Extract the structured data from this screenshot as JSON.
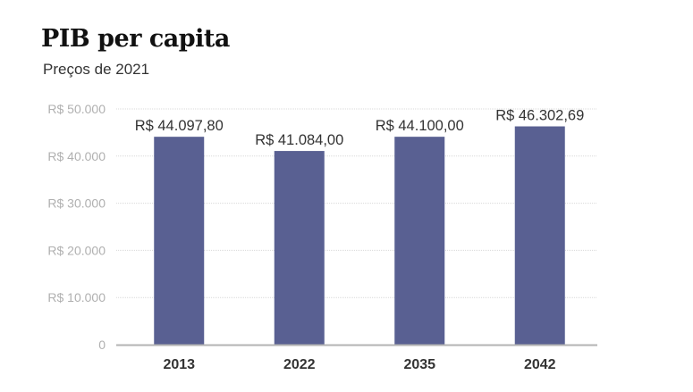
{
  "chart_data": {
    "type": "bar",
    "title": "PIB per capita",
    "subtitle": "Preços de 2021",
    "categories": [
      "2013",
      "2022",
      "2035",
      "2042"
    ],
    "values": [
      44097.8,
      41084.0,
      44100.0,
      46302.69
    ],
    "data_labels": [
      "R$ 44.097,80",
      "R$ 41.084,00",
      "R$ 44.100,00",
      "R$ 46.302,69"
    ],
    "ylim": [
      0,
      50000
    ],
    "yticks": [
      0,
      10000,
      20000,
      30000,
      40000,
      50000
    ],
    "ytick_labels": [
      "0",
      "R$ 10.000",
      "R$ 20.000",
      "R$ 30.000",
      "R$ 40.000",
      "R$ 50.000"
    ],
    "grid": true,
    "xlabel": "",
    "ylabel": "",
    "colors": {
      "bar": "#596092",
      "grid": "#d9d9d9",
      "axis": "#b3b3b3"
    }
  }
}
